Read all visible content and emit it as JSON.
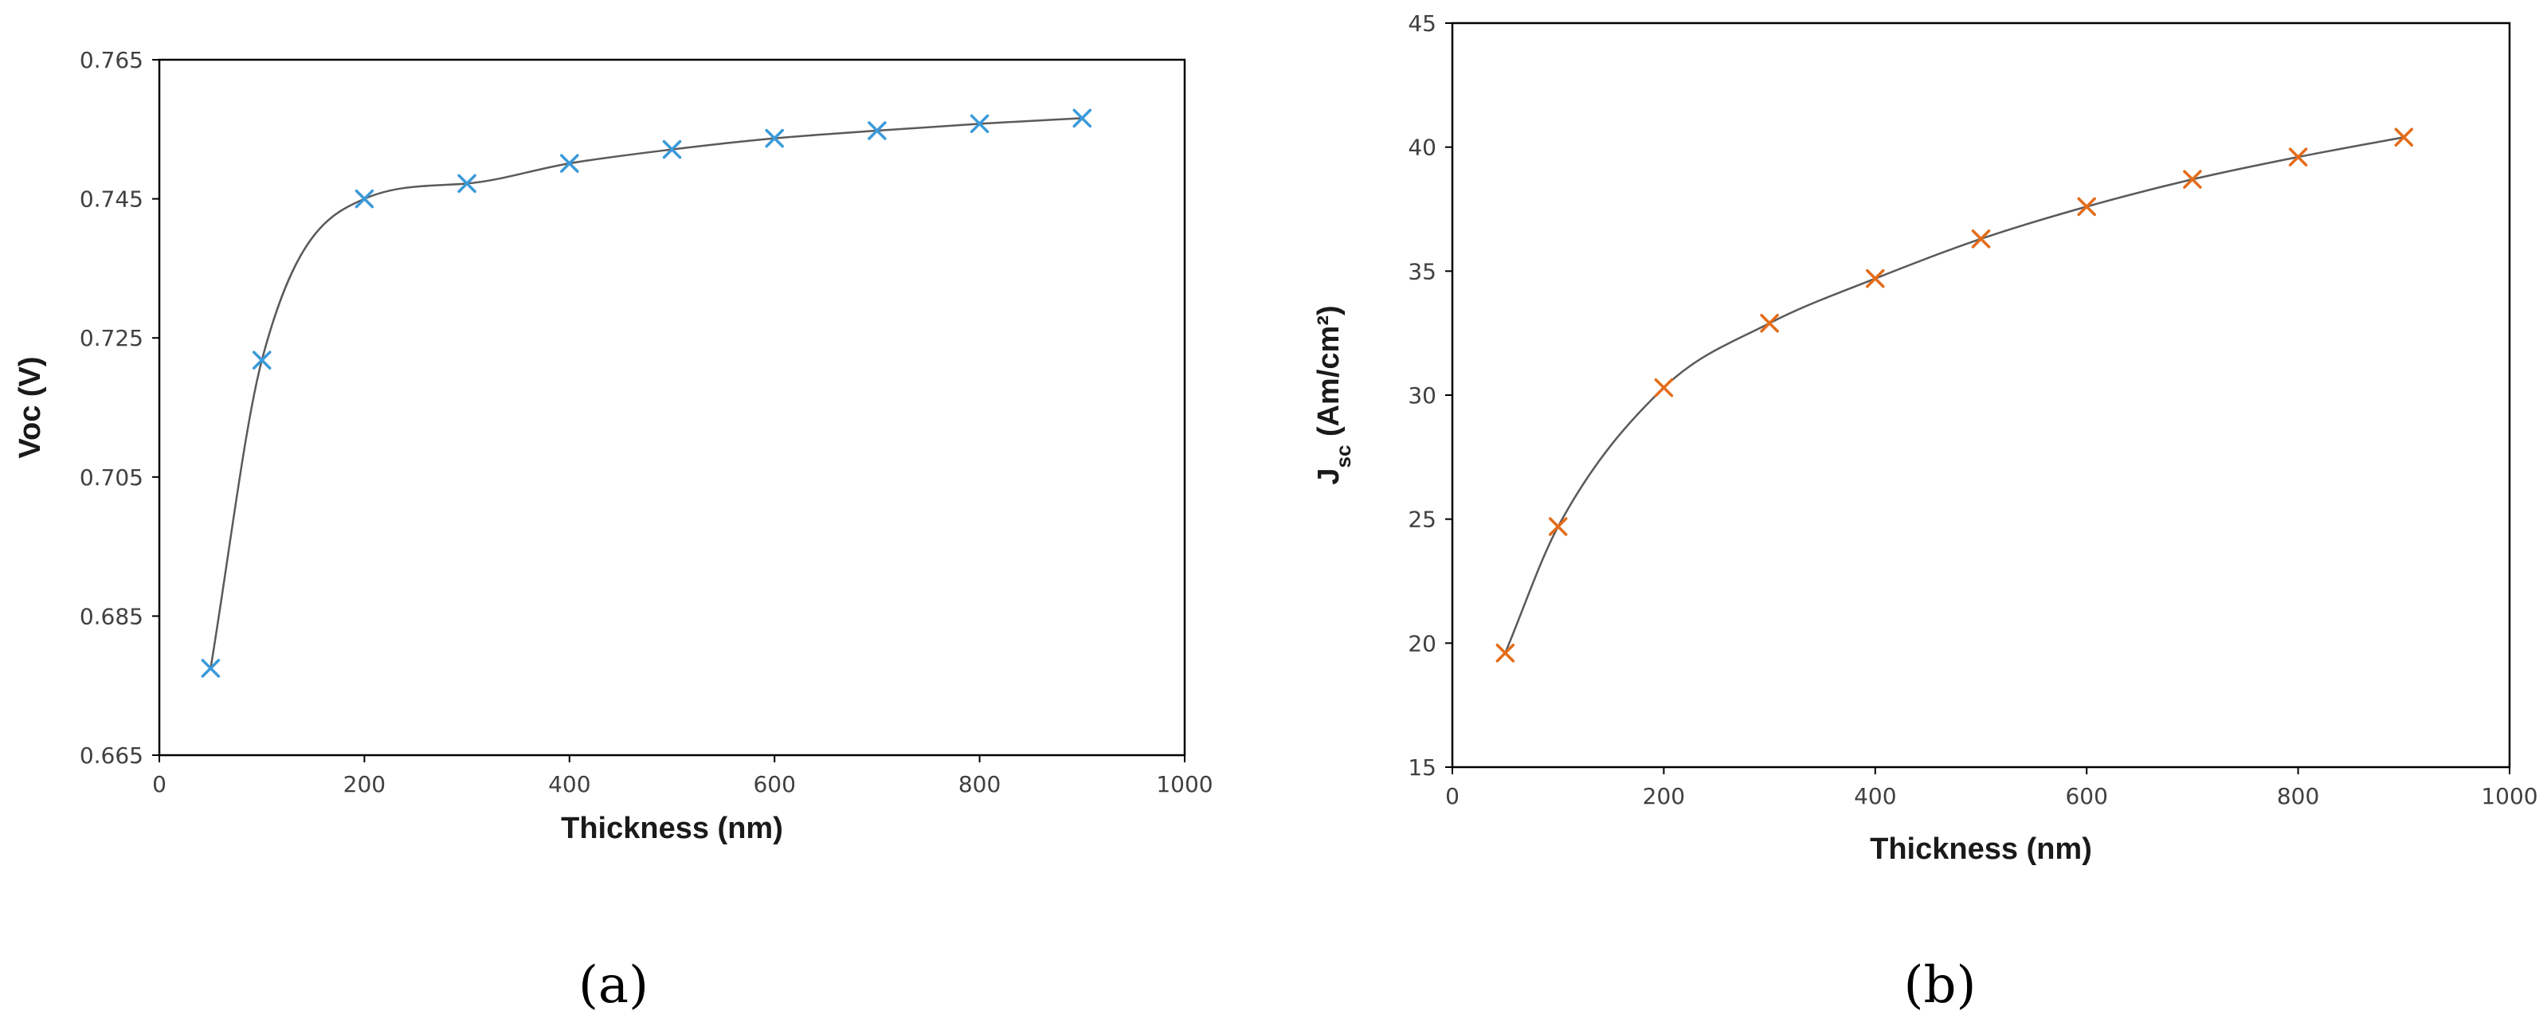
{
  "chart_data": [
    {
      "type": "scatter",
      "title": "",
      "xlabel": "Thickness (nm)",
      "ylabel": "Voc (V)",
      "xlim": [
        0,
        1000
      ],
      "ylim": [
        0.665,
        0.765
      ],
      "x_ticks": [
        "0",
        "200",
        "400",
        "600",
        "800",
        "1000"
      ],
      "y_ticks": [
        "0.665",
        "0.685",
        "0.705",
        "0.725",
        "0.745",
        "0.765"
      ],
      "grid": false,
      "legend": "none",
      "marker": "x",
      "marker_color": "#3a9ad9",
      "line_color": "#5a5a5a",
      "line": "smoothed",
      "series": [
        {
          "x": [
            50,
            100,
            200,
            300,
            400,
            500,
            600,
            700,
            800,
            900
          ],
          "y": [
            0.6775,
            0.7218,
            0.745,
            0.7472,
            0.7501,
            0.7521,
            0.7537,
            0.7548,
            0.7558,
            0.7566
          ]
        }
      ],
      "panel_label": "(a)"
    },
    {
      "type": "scatter",
      "title": "",
      "xlabel": "Thickness (nm)",
      "ylabel_main": "J",
      "ylabel_sub": "sc",
      "ylabel_rest": " (Am/cm²)",
      "xlim": [
        0,
        1000
      ],
      "ylim": [
        15,
        45
      ],
      "x_ticks": [
        "0",
        "200",
        "400",
        "600",
        "800",
        "1000"
      ],
      "y_ticks": [
        "15",
        "20",
        "25",
        "30",
        "35",
        "40",
        "45"
      ],
      "grid": false,
      "legend": "none",
      "marker": "x",
      "marker_color": "#e36c1a",
      "line_color": "#5a5a5a",
      "line": "smoothed",
      "series": [
        {
          "x": [
            50,
            100,
            200,
            300,
            400,
            500,
            600,
            700,
            800,
            900
          ],
          "y": [
            19.6,
            24.7,
            30.3,
            32.9,
            34.7,
            36.3,
            37.6,
            38.7,
            39.6,
            40.4
          ]
        }
      ],
      "panel_label": "(b)"
    }
  ]
}
